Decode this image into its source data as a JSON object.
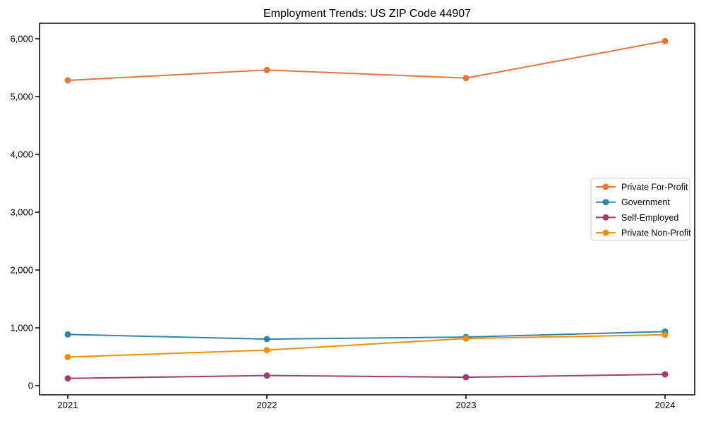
{
  "figure": {
    "background": "#ffffff",
    "spine_color": "#000000"
  },
  "chart_data": {
    "type": "line",
    "title": "Employment Trends: US ZIP Code 44907",
    "xlabel": "",
    "ylabel": "",
    "x": [
      2021,
      2022,
      2023,
      2024
    ],
    "x_tick_labels": [
      "2021",
      "2022",
      "2023",
      "2024"
    ],
    "yticks": [
      0,
      1000,
      2000,
      3000,
      4000,
      5000,
      6000
    ],
    "ytick_labels": [
      "0",
      "1,000",
      "2,000",
      "3,000",
      "4,000",
      "5,000",
      "6,000"
    ],
    "ylim": [
      -170,
      6260
    ],
    "grid": false,
    "marker": "circle",
    "legend_position": "center-right",
    "series": [
      {
        "name": "Private For-Profit",
        "color": "#E8743B",
        "values": [
          5280,
          5460,
          5320,
          5960
        ]
      },
      {
        "name": "Government",
        "color": "#2E86AB",
        "values": [
          885,
          805,
          840,
          935
        ]
      },
      {
        "name": "Self-Employed",
        "color": "#A23B72",
        "values": [
          125,
          175,
          145,
          195
        ]
      },
      {
        "name": "Private Non-Profit",
        "color": "#F18F01",
        "values": [
          495,
          615,
          815,
          880
        ]
      }
    ]
  }
}
